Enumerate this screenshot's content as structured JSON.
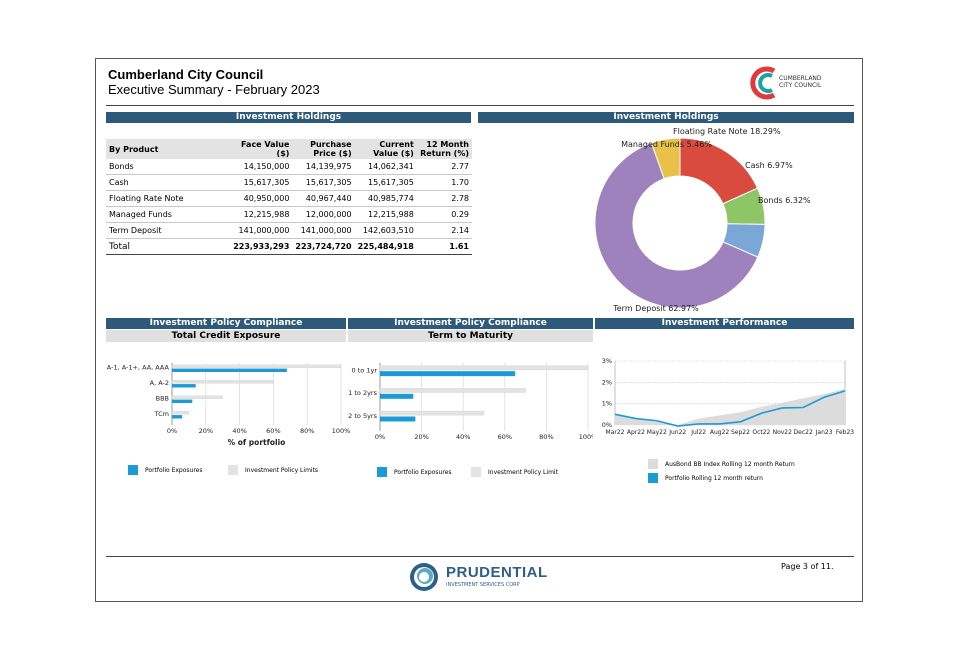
{
  "header": {
    "council_name": "Cumberland City Council",
    "report_title": "Executive Summary - February 2023",
    "logo_text_line1": "CUMBERLAND",
    "logo_text_line2": "CITY COUNCIL"
  },
  "holdings_table": {
    "section_title": "Investment Holdings",
    "columns": [
      "By Product",
      "Face Value ($)",
      "Purchase Price ($)",
      "Current Value ($)",
      "12 Month Return (%)"
    ],
    "rows": [
      [
        "Bonds",
        "14,150,000",
        "14,139,975",
        "14,062,341",
        "2.77"
      ],
      [
        "Cash",
        "15,617,305",
        "15,617,305",
        "15,617,305",
        "1.70"
      ],
      [
        "Floating Rate Note",
        "40,950,000",
        "40,967,440",
        "40,985,774",
        "2.78"
      ],
      [
        "Managed Funds",
        "12,215,988",
        "12,000,000",
        "12,215,988",
        "0.29"
      ],
      [
        "Term Deposit",
        "141,000,000",
        "141,000,000",
        "142,603,510",
        "2.14"
      ]
    ],
    "total": [
      "Total",
      "223,933,293",
      "223,724,720",
      "225,484,918",
      "1.61"
    ]
  },
  "holdings_pie": {
    "section_title": "Investment Holdings",
    "chart_data": {
      "type": "pie",
      "title": "Investment Holdings",
      "labels": [
        "Floating Rate Note 18.29%",
        "Cash 6.97%",
        "Bonds 6.32%",
        "Term Deposit 62.97%",
        "Managed Funds 5.46%"
      ],
      "values": [
        18.29,
        6.97,
        6.32,
        62.97,
        5.46
      ],
      "colors": [
        "#d94b3f",
        "#8ec565",
        "#7aa7d6",
        "#9e82be",
        "#e9c048"
      ]
    }
  },
  "compliance_credit": {
    "section_title": "Investment Policy Compliance",
    "subtitle": "Total Credit Exposure",
    "chart_data": {
      "type": "bar",
      "orientation": "horizontal",
      "categories": [
        "A-1, A-1+, AA, AAA",
        "A, A-2",
        "BBB",
        "TCm"
      ],
      "series": [
        {
          "name": "Portfolio Exposures",
          "values": [
            68,
            14,
            12,
            6
          ],
          "color": "#1c9ad6"
        },
        {
          "name": "Investment Policy Limits",
          "values": [
            100,
            60,
            30,
            10
          ],
          "color": "#e3e3e3"
        }
      ],
      "xlim": [
        0,
        100
      ],
      "xticks": [
        "0%",
        "20%",
        "40%",
        "60%",
        "80%",
        "100%"
      ],
      "xlabel": "% of portfolio"
    }
  },
  "compliance_maturity": {
    "section_title": "Investment Policy Compliance",
    "subtitle": "Term to Maturity",
    "chart_data": {
      "type": "bar",
      "orientation": "horizontal",
      "categories": [
        "0 to 1yr",
        "1 to 2yrs",
        "2 to 5yrs"
      ],
      "series": [
        {
          "name": "Portfolio Exposures",
          "values": [
            65,
            16,
            17
          ],
          "color": "#1c9ad6"
        },
        {
          "name": "Investment Policy Limit",
          "values": [
            100,
            70,
            50
          ],
          "color": "#e3e3e3"
        }
      ],
      "xlim": [
        0,
        100
      ],
      "xticks": [
        "0%",
        "20%",
        "40%",
        "60%",
        "80%",
        "100%"
      ],
      "xlabel": ""
    }
  },
  "performance": {
    "section_title": "Investment Performance",
    "chart_data": {
      "type": "line",
      "categories": [
        "Mar22",
        "Apr22",
        "May22",
        "Jun22",
        "Jul22",
        "Aug22",
        "Sep22",
        "Oct22",
        "Nov22",
        "Dec22",
        "Jan23",
        "Feb23"
      ],
      "ylim": [
        0,
        3
      ],
      "yticks": [
        "0%",
        "1%",
        "2%",
        "3%"
      ],
      "series": [
        {
          "name": "AusBond BB Index Rolling 12 month Return",
          "type": "area",
          "values": [
            0.5,
            0.3,
            0.15,
            0.0,
            0.3,
            0.45,
            0.6,
            0.85,
            1.05,
            1.25,
            1.45,
            1.7
          ],
          "color": "#dcdcdc"
        },
        {
          "name": "Portfolio Rolling 12 month return",
          "type": "line",
          "values": [
            0.5,
            0.3,
            0.2,
            -0.05,
            0.05,
            0.05,
            0.15,
            0.55,
            0.8,
            0.82,
            1.3,
            1.6
          ],
          "color": "#1c9ad6"
        }
      ]
    }
  },
  "footer": {
    "brand_name": "PRUDENTIAL",
    "brand_tagline": "INVESTMENT SERVICES CORP",
    "page_number": "Page 3 of 11."
  }
}
